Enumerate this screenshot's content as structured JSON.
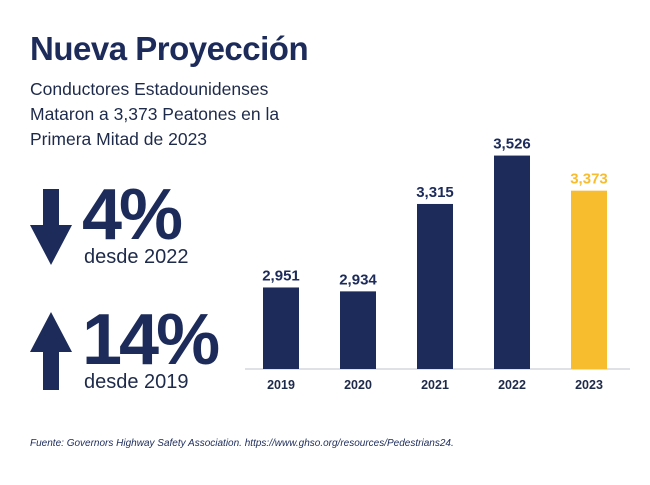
{
  "title": "Nueva Proyección",
  "subtitle_lines": [
    "Conductores Estadounidenses",
    "Mataron a 3,373 Peatones en la",
    "Primera Mitad de 2023"
  ],
  "stats": [
    {
      "direction": "down",
      "value": "4%",
      "label": "desde 2022",
      "icon": "arrow-down-icon"
    },
    {
      "direction": "up",
      "value": "14%",
      "label": "desde 2019",
      "icon": "arrow-up-icon"
    }
  ],
  "source": "Fuente: Governors Highway Safety Association. https://www.ghso.org/resources/Pedestrians24.",
  "colors": {
    "navy": "#1c2b5a",
    "highlight": "#f7bd2f"
  },
  "chart_data": {
    "type": "bar",
    "categories": [
      "2019",
      "2020",
      "2021",
      "2022",
      "2023"
    ],
    "values": [
      2951,
      2934,
      3315,
      3526,
      3373
    ],
    "value_labels": [
      "2,951",
      "2,934",
      "3,315",
      "3,526",
      "3,373"
    ],
    "highlight_category": "2023",
    "title": "",
    "xlabel": "",
    "ylabel": "",
    "grid": false,
    "legend": "none"
  }
}
